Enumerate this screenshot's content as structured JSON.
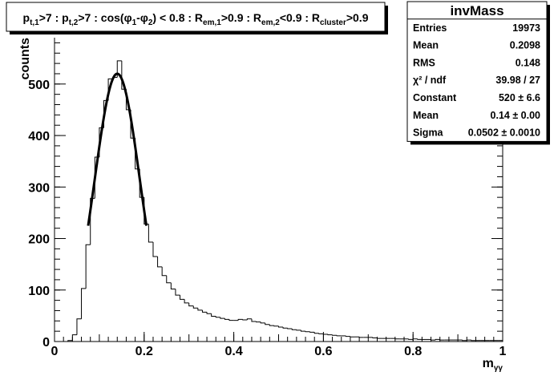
{
  "chart_data": {
    "type": "histogram",
    "title": [
      {
        "text": "p",
        "sub": false
      },
      {
        "text": "t,1",
        "sub": true
      },
      {
        "text": ">7 : p",
        "sub": false
      },
      {
        "text": "t,2",
        "sub": true
      },
      {
        "text": ">7 : cos(",
        "sub": false
      },
      {
        "text": "φ",
        "sub": false
      },
      {
        "text": "1",
        "sub": true
      },
      {
        "text": "-",
        "sub": false
      },
      {
        "text": "φ",
        "sub": false
      },
      {
        "text": "2",
        "sub": true
      },
      {
        "text": ") < 0.8 : R",
        "sub": false
      },
      {
        "text": "em,1",
        "sub": true
      },
      {
        "text": ">0.9 : R",
        "sub": false
      },
      {
        "text": "em,2",
        "sub": true
      },
      {
        "text": "<0.9 : R",
        "sub": false
      },
      {
        "text": "cluster",
        "sub": true
      },
      {
        "text": ">0.9",
        "sub": false
      }
    ],
    "xlabel": [
      {
        "text": "m",
        "sub": false
      },
      {
        "text": "γγ",
        "sub": true
      }
    ],
    "ylabel": "counts",
    "bins": [
      0,
      0.01,
      0.02,
      0.03,
      0.04,
      0.05,
      0.06,
      0.07,
      0.08,
      0.09,
      0.1,
      0.11,
      0.12,
      0.13,
      0.14,
      0.15,
      0.16,
      0.17,
      0.18,
      0.19,
      0.2,
      0.21,
      0.22,
      0.23,
      0.24,
      0.25,
      0.26,
      0.27,
      0.28,
      0.29,
      0.3,
      0.31,
      0.32,
      0.33,
      0.34,
      0.35,
      0.36,
      0.37,
      0.38,
      0.39,
      0.4,
      0.41,
      0.42,
      0.43,
      0.44,
      0.45,
      0.46,
      0.47,
      0.48,
      0.49,
      0.5,
      0.51,
      0.52,
      0.53,
      0.54,
      0.55,
      0.56,
      0.57,
      0.58,
      0.59,
      0.6,
      0.61,
      0.62,
      0.63,
      0.64,
      0.65,
      0.66,
      0.67,
      0.68,
      0.69,
      0.7,
      0.71,
      0.72,
      0.73,
      0.74,
      0.75,
      0.76,
      0.77,
      0.78,
      0.79,
      0.8,
      0.81,
      0.82,
      0.83,
      0.84,
      0.85,
      0.86,
      0.87,
      0.88,
      0.89,
      0.9,
      0.91,
      0.92,
      0.93,
      0.94,
      0.95,
      0.96,
      0.97,
      0.98,
      0.99,
      1
    ],
    "values": [
      0,
      0,
      0,
      2,
      13,
      44,
      103,
      188,
      278,
      358,
      415,
      468,
      510,
      513,
      545,
      490,
      450,
      395,
      335,
      280,
      228,
      193,
      165,
      145,
      128,
      114,
      102,
      90,
      82,
      75,
      69,
      65,
      61,
      57,
      54,
      49,
      47,
      45,
      43,
      41,
      41,
      43,
      42,
      44,
      39,
      38,
      36,
      33,
      31,
      30,
      28,
      26,
      25,
      23,
      22,
      20,
      19,
      18,
      16,
      15,
      14,
      13,
      12,
      11,
      11,
      10,
      9,
      9,
      8,
      8,
      8,
      7,
      6,
      6,
      6,
      6,
      5,
      5,
      5,
      4,
      5,
      4,
      4,
      4,
      3,
      4,
      3,
      3,
      3,
      3,
      3,
      2,
      3,
      2,
      2,
      2,
      2,
      2,
      2,
      2
    ],
    "color": "#000000",
    "xlim": [
      0,
      1
    ],
    "ylim": [
      0,
      590
    ],
    "xticks": [
      0,
      0.2,
      0.4,
      0.6,
      0.8,
      1
    ],
    "yticks": [
      0,
      100,
      200,
      300,
      400,
      500
    ],
    "fit_range": [
      0.075,
      0.205
    ],
    "stats": {
      "title": "invMass",
      "rows": [
        {
          "name": "Entries",
          "value": 19973
        },
        {
          "name": "Mean",
          "value": 0.2098
        },
        {
          "name": "RMS",
          "value": 0.148
        },
        {
          "name": "χ² / ndf",
          "value": "39.98 / 27"
        },
        {
          "name": "Constant",
          "value": 520,
          "label": "520 ± 6.6"
        },
        {
          "name": "Mean",
          "value": 0.14,
          "label": "0.14 ± 0.00"
        },
        {
          "name": "Sigma",
          "value": 0.0502,
          "label": "0.0502 ± 0.0010"
        }
      ]
    }
  }
}
